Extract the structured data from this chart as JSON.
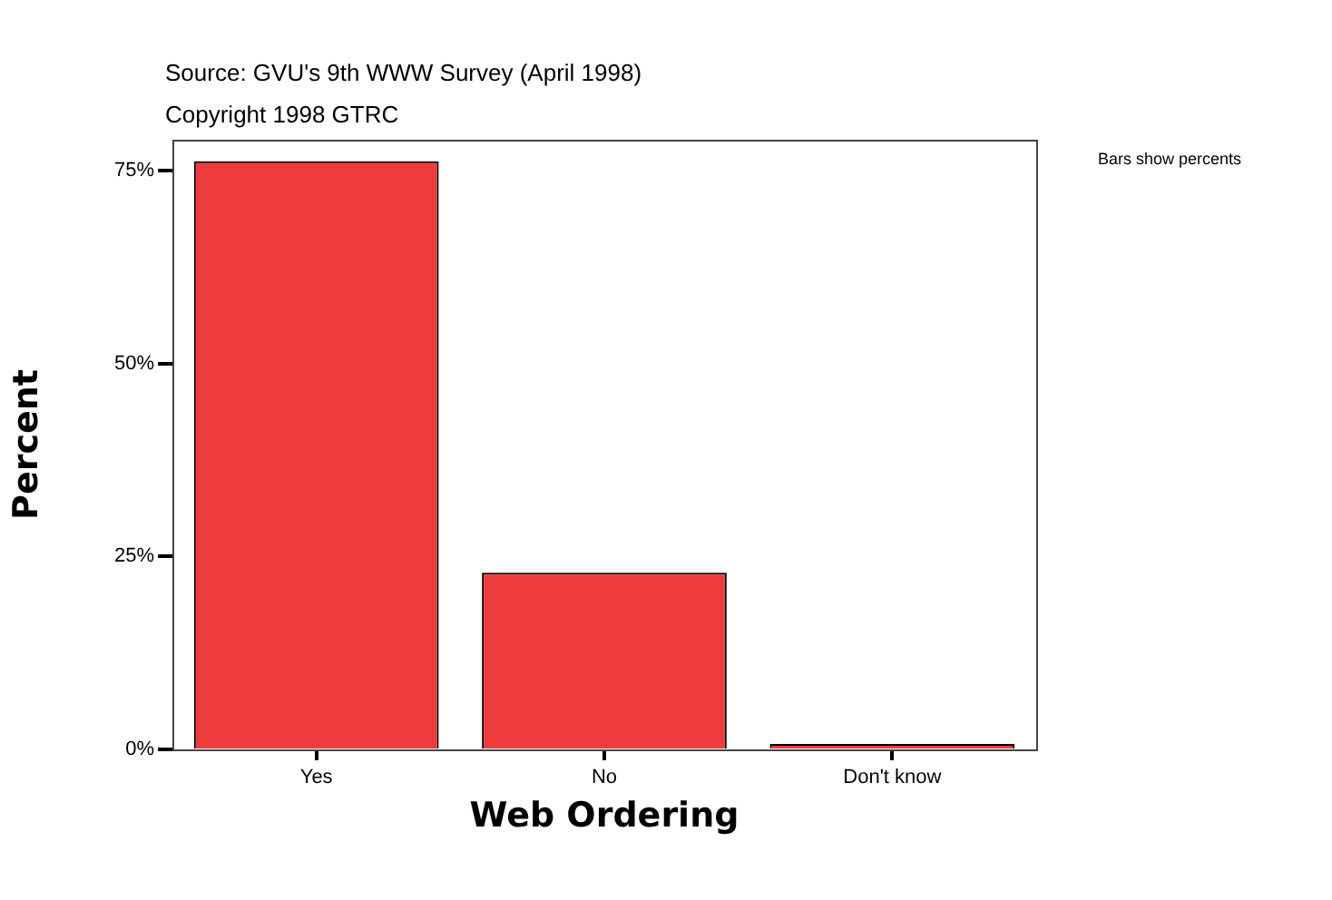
{
  "chart_data": {
    "type": "bar",
    "xlabel": "Web Ordering",
    "ylabel": "Percent",
    "categories": [
      "Yes",
      "No",
      "Don't know"
    ],
    "values": [
      76.2,
      22.9,
      0.7
    ],
    "color": "#ee3b3b",
    "ylim": [
      0,
      79
    ],
    "yticks": [
      {
        "value": 0,
        "label": "0%"
      },
      {
        "value": 25,
        "label": "25%"
      },
      {
        "value": 50,
        "label": "50%"
      },
      {
        "value": 75,
        "label": "75%"
      }
    ],
    "grid": false,
    "legend": false,
    "annotations": [
      "Source: GVU's 9th WWW Survey (April 1998)",
      "Copyright 1998 GTRC",
      "Bars show percents"
    ]
  }
}
